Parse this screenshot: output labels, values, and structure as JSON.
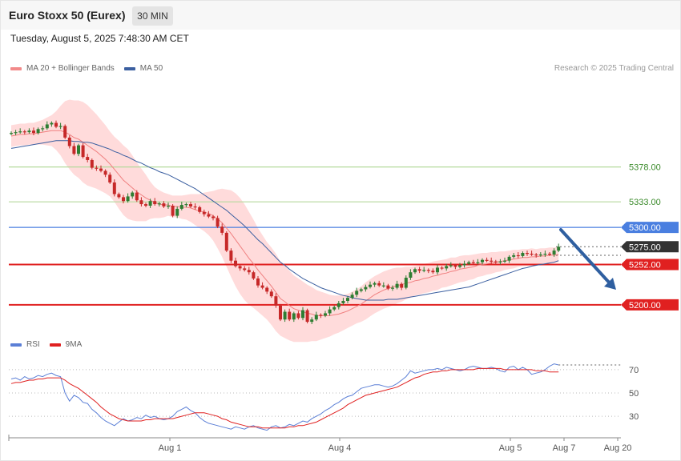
{
  "header": {
    "title": "Euro Stoxx 50 (Eurex)",
    "timeframe": "30 MIN",
    "datetime": "Tuesday, August 5, 2025 7:48:30 AM CET"
  },
  "legend_main": [
    {
      "label": "MA 20 + Bollinger Bands",
      "color": "#f28a8a"
    },
    {
      "label": "MA 50",
      "color": "#3b5fa0"
    }
  ],
  "legend_rsi": [
    {
      "label": "RSI",
      "color": "#5b7fd6"
    },
    {
      "label": "9MA",
      "color": "#e02020"
    }
  ],
  "copyright": "Research © 2025 Trading Central",
  "colors": {
    "up_candle": "#2e7d32",
    "down_candle": "#c62828",
    "band_fill": "#ffd5d5",
    "resistance_line": "#b5d99c",
    "pivot_line": "#4a7fe0",
    "support_line": "#e02020",
    "current_price_tag": "#333333",
    "projection_arrow": "#2f5fa0"
  },
  "chart_data": [
    {
      "type": "candlestick",
      "title": "",
      "x_tick_labels": [
        "Aug 1",
        "Aug 4",
        "Aug 5",
        "Aug 7",
        "Aug 20"
      ],
      "ylim": [
        5175,
        5480
      ],
      "price_levels": [
        {
          "value": 5378.0,
          "label": "5378.00",
          "kind": "resistance"
        },
        {
          "value": 5333.0,
          "label": "5333.00",
          "kind": "resistance"
        },
        {
          "value": 5300.0,
          "label": "5300.00",
          "kind": "pivot"
        },
        {
          "value": 5275.0,
          "label": "5275.00",
          "kind": "last-price"
        },
        {
          "value": 5252.0,
          "label": "5252.00",
          "kind": "support"
        },
        {
          "value": 5200.0,
          "label": "5200.00",
          "kind": "support"
        }
      ],
      "closes": [
        5422,
        5423,
        5424,
        5423,
        5425,
        5422,
        5427,
        5428,
        5433,
        5435,
        5430,
        5431,
        5416,
        5405,
        5395,
        5406,
        5391,
        5387,
        5377,
        5376,
        5373,
        5368,
        5358,
        5343,
        5339,
        5334,
        5340,
        5345,
        5335,
        5330,
        5328,
        5334,
        5330,
        5331,
        5327,
        5328,
        5315,
        5324,
        5329,
        5330,
        5327,
        5326,
        5320,
        5317,
        5314,
        5312,
        5301,
        5293,
        5270,
        5257,
        5250,
        5247,
        5245,
        5242,
        5234,
        5225,
        5222,
        5217,
        5211,
        5199,
        5181,
        5191,
        5181,
        5189,
        5183,
        5193,
        5178,
        5181,
        5187,
        5186,
        5189,
        5194,
        5197,
        5202,
        5205,
        5209,
        5213,
        5218,
        5220,
        5223,
        5226,
        5228,
        5225,
        5225,
        5221,
        5222,
        5227,
        5222,
        5235,
        5242,
        5246,
        5244,
        5245,
        5244,
        5242,
        5248,
        5247,
        5250,
        5251,
        5249,
        5251,
        5253,
        5255,
        5254,
        5255,
        5258,
        5257,
        5256,
        5255,
        5256,
        5257,
        5262,
        5264,
        5263,
        5267,
        5266,
        5265,
        5264,
        5265,
        5266,
        5265,
        5270,
        5275
      ],
      "ma20": [
        5418,
        5419,
        5420,
        5420,
        5421,
        5421,
        5422,
        5423,
        5424,
        5425,
        5425,
        5425,
        5423,
        5420,
        5416,
        5414,
        5410,
        5406,
        5402,
        5398,
        5393,
        5388,
        5382,
        5375,
        5368,
        5361,
        5356,
        5351,
        5346,
        5342,
        5338,
        5335,
        5332,
        5330,
        5329,
        5329,
        5327,
        5327,
        5326,
        5326,
        5325,
        5323,
        5321,
        5320,
        5318,
        5315,
        5311,
        5306,
        5299,
        5292,
        5284,
        5276,
        5268,
        5260,
        5253,
        5245,
        5238,
        5231,
        5224,
        5216,
        5208,
        5204,
        5199,
        5195,
        5193,
        5191,
        5189,
        5188,
        5186,
        5186,
        5186,
        5186,
        5187,
        5188,
        5190,
        5192,
        5195,
        5198,
        5201,
        5205,
        5209,
        5213,
        5216,
        5219,
        5221,
        5223,
        5225,
        5226,
        5228,
        5229,
        5231,
        5232,
        5234,
        5235,
        5237,
        5238,
        5240,
        5241,
        5243,
        5244,
        5246,
        5247,
        5248,
        5249,
        5251,
        5252,
        5253,
        5254,
        5255,
        5256,
        5257,
        5258,
        5259,
        5260,
        5261,
        5261,
        5262,
        5262,
        5263,
        5263,
        5264,
        5264,
        5265
      ],
      "ma50": [
        5402,
        5403,
        5404,
        5405,
        5406,
        5407,
        5408,
        5409,
        5410,
        5411,
        5412,
        5412,
        5412,
        5412,
        5411,
        5411,
        5410,
        5410,
        5409,
        5407,
        5405,
        5403,
        5401,
        5398,
        5396,
        5393,
        5391,
        5388,
        5385,
        5383,
        5380,
        5377,
        5375,
        5372,
        5370,
        5368,
        5365,
        5362,
        5359,
        5356,
        5353,
        5350,
        5346,
        5342,
        5338,
        5334,
        5330,
        5326,
        5322,
        5317,
        5312,
        5307,
        5302,
        5296,
        5290,
        5284,
        5279,
        5273,
        5267,
        5261,
        5255,
        5251,
        5246,
        5242,
        5238,
        5234,
        5231,
        5228,
        5225,
        5222,
        5220,
        5218,
        5216,
        5214,
        5212,
        5211,
        5209,
        5208,
        5207,
        5206,
        5206,
        5206,
        5206,
        5206,
        5207,
        5207,
        5207,
        5208,
        5209,
        5210,
        5211,
        5212,
        5213,
        5214,
        5215,
        5216,
        5217,
        5218,
        5219,
        5220,
        5221,
        5222,
        5223,
        5225,
        5227,
        5229,
        5231,
        5233,
        5235,
        5237,
        5239,
        5241,
        5243,
        5245,
        5247,
        5248,
        5250,
        5251,
        5252,
        5253,
        5254,
        5255,
        5257
      ],
      "band_width": [
        14,
        14,
        14,
        14,
        14,
        14,
        15,
        16,
        18,
        20,
        25,
        32,
        40,
        45,
        48,
        50,
        52,
        52,
        50,
        48,
        46,
        44,
        42,
        42,
        44,
        45,
        45,
        42,
        38,
        34,
        30,
        24,
        20,
        18,
        16,
        14,
        14,
        14,
        15,
        16,
        18,
        20,
        22,
        25,
        28,
        32,
        38,
        44,
        50,
        56,
        60,
        62,
        62,
        60,
        57,
        54,
        52,
        50,
        50,
        50,
        48,
        47,
        45,
        43,
        41,
        39,
        37,
        35,
        33,
        31,
        29,
        27,
        25,
        24,
        23,
        22,
        22,
        22,
        23,
        24,
        24,
        24,
        24,
        24,
        24,
        24,
        23,
        22,
        21,
        20,
        19,
        19,
        19,
        19,
        19,
        19,
        18,
        18,
        18,
        17,
        17,
        17,
        16,
        16,
        15,
        15,
        14,
        14,
        13,
        13,
        12,
        12,
        12,
        11,
        11,
        11,
        11,
        10,
        10,
        10,
        10,
        10,
        10
      ]
    },
    {
      "type": "line",
      "title": "",
      "ylim": [
        15,
        85
      ],
      "y_ticks": [
        30,
        50,
        70
      ],
      "series": [
        {
          "name": "RSI",
          "values": [
            62,
            63,
            61,
            64,
            62,
            63,
            65,
            64,
            66,
            67,
            65,
            64,
            50,
            43,
            48,
            46,
            42,
            41,
            36,
            33,
            29,
            26,
            24,
            22,
            25,
            28,
            26,
            27,
            29,
            28,
            31,
            29,
            30,
            28,
            27,
            28,
            30,
            34,
            36,
            38,
            35,
            33,
            29,
            26,
            24,
            23,
            22,
            21,
            20,
            19,
            21,
            20,
            19,
            21,
            22,
            20,
            19,
            18,
            21,
            22,
            20,
            21,
            23,
            22,
            24,
            26,
            25,
            28,
            30,
            32,
            35,
            37,
            40,
            42,
            45,
            47,
            48,
            51,
            54,
            55,
            56,
            57,
            57,
            56,
            55,
            56,
            58,
            61,
            64,
            69,
            67,
            68,
            69,
            70,
            70,
            71,
            70,
            72,
            71,
            70,
            69,
            70,
            72,
            73,
            72,
            71,
            71,
            72,
            71,
            69,
            68,
            72,
            73,
            70,
            72,
            70,
            66,
            67,
            68,
            70,
            73,
            75,
            74
          ]
        },
        {
          "name": "9MA",
          "values": [
            58,
            59,
            59,
            60,
            61,
            61,
            62,
            62,
            63,
            63,
            63,
            63,
            61,
            58,
            56,
            54,
            51,
            48,
            45,
            42,
            38,
            35,
            32,
            30,
            28,
            27,
            26,
            26,
            26,
            26,
            27,
            27,
            28,
            28,
            28,
            28,
            28,
            29,
            30,
            31,
            32,
            33,
            33,
            33,
            32,
            31,
            30,
            28,
            27,
            25,
            24,
            23,
            22,
            21,
            21,
            21,
            20,
            20,
            20,
            20,
            20,
            20,
            21,
            21,
            22,
            22,
            23,
            24,
            25,
            27,
            29,
            31,
            33,
            35,
            37,
            40,
            42,
            44,
            46,
            48,
            49,
            50,
            51,
            52,
            53,
            54,
            55,
            57,
            59,
            61,
            63,
            64,
            66,
            67,
            68,
            68,
            69,
            69,
            70,
            70,
            70,
            70,
            70,
            70,
            71,
            71,
            71,
            71,
            71,
            71,
            70,
            70,
            70,
            70,
            70,
            70,
            70,
            69,
            69,
            69,
            68,
            68,
            68
          ]
        }
      ]
    }
  ]
}
